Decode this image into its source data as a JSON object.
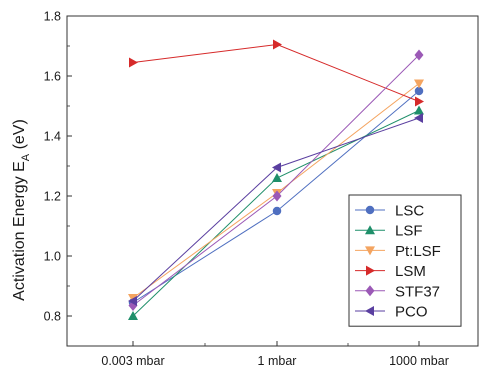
{
  "chart_data": {
    "type": "line",
    "title": "",
    "xlabel": "",
    "ylabel_main": "Activation Energy E",
    "ylabel_sub": "A",
    "ylabel_unit": " (eV)",
    "categories": [
      "0.003 mbar",
      "1 mbar",
      "1000 mbar"
    ],
    "ylim": [
      0.7,
      1.8
    ],
    "yticks": [
      "0.8",
      "1.0",
      "1.2",
      "1.4",
      "1.6",
      "1.8"
    ],
    "grid": false,
    "legend_position": "bottom-right",
    "series": [
      {
        "name": "LSC",
        "color": "#4f6fc0",
        "marker": "circle",
        "values": [
          0.845,
          1.15,
          1.55
        ]
      },
      {
        "name": "LSF",
        "color": "#1f8f6a",
        "marker": "triangle-up",
        "values": [
          0.8,
          1.26,
          1.485
        ]
      },
      {
        "name": "Pt:LSF",
        "color": "#f4a460",
        "marker": "triangle-down",
        "values": [
          0.86,
          1.21,
          1.575
        ]
      },
      {
        "name": "LSM",
        "color": "#d62a2a",
        "marker": "triangle-right",
        "values": [
          1.645,
          1.705,
          1.515
        ]
      },
      {
        "name": "STF37",
        "color": "#9b59b6",
        "marker": "diamond",
        "values": [
          0.835,
          1.2,
          1.67
        ]
      },
      {
        "name": "PCO",
        "color": "#5a3fa0",
        "marker": "triangle-left",
        "values": [
          0.85,
          1.295,
          1.46
        ]
      }
    ]
  }
}
